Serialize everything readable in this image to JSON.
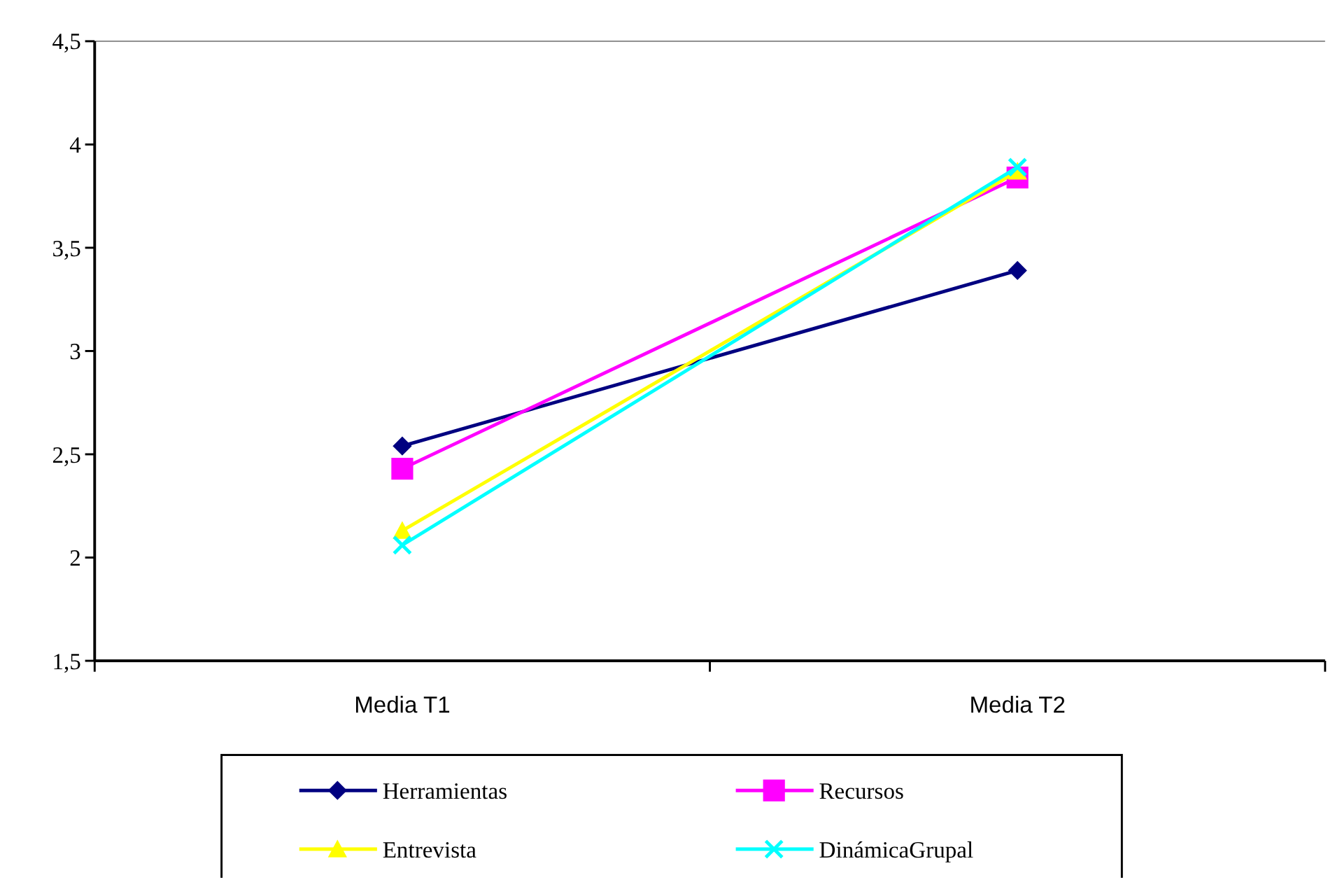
{
  "chart_data": {
    "type": "line",
    "categories": [
      "Media T1",
      "Media T2"
    ],
    "series": [
      {
        "name": "Herramientas",
        "color": "#000080",
        "marker": "diamond",
        "values": [
          2.54,
          3.39
        ]
      },
      {
        "name": "Recursos",
        "color": "#ff00ff",
        "marker": "square",
        "values": [
          2.43,
          3.84
        ]
      },
      {
        "name": "Entrevista",
        "color": "#ffff00",
        "marker": "triangle",
        "values": [
          2.13,
          3.87
        ]
      },
      {
        "name": "DinámicaGrupal",
        "color": "#00ffff",
        "marker": "cross",
        "values": [
          2.06,
          3.89
        ]
      }
    ],
    "ylim": [
      1.5,
      4.5
    ],
    "yticks": [
      {
        "value": 1.5,
        "label": "1,5"
      },
      {
        "value": 2,
        "label": "2"
      },
      {
        "value": 2.5,
        "label": "2,5"
      },
      {
        "value": 3,
        "label": "3"
      },
      {
        "value": 3.5,
        "label": "3,5"
      },
      {
        "value": 4,
        "label": "4"
      },
      {
        "value": 4.5,
        "label": "4,5"
      }
    ],
    "legend": "bottom",
    "line_style": "solid"
  }
}
